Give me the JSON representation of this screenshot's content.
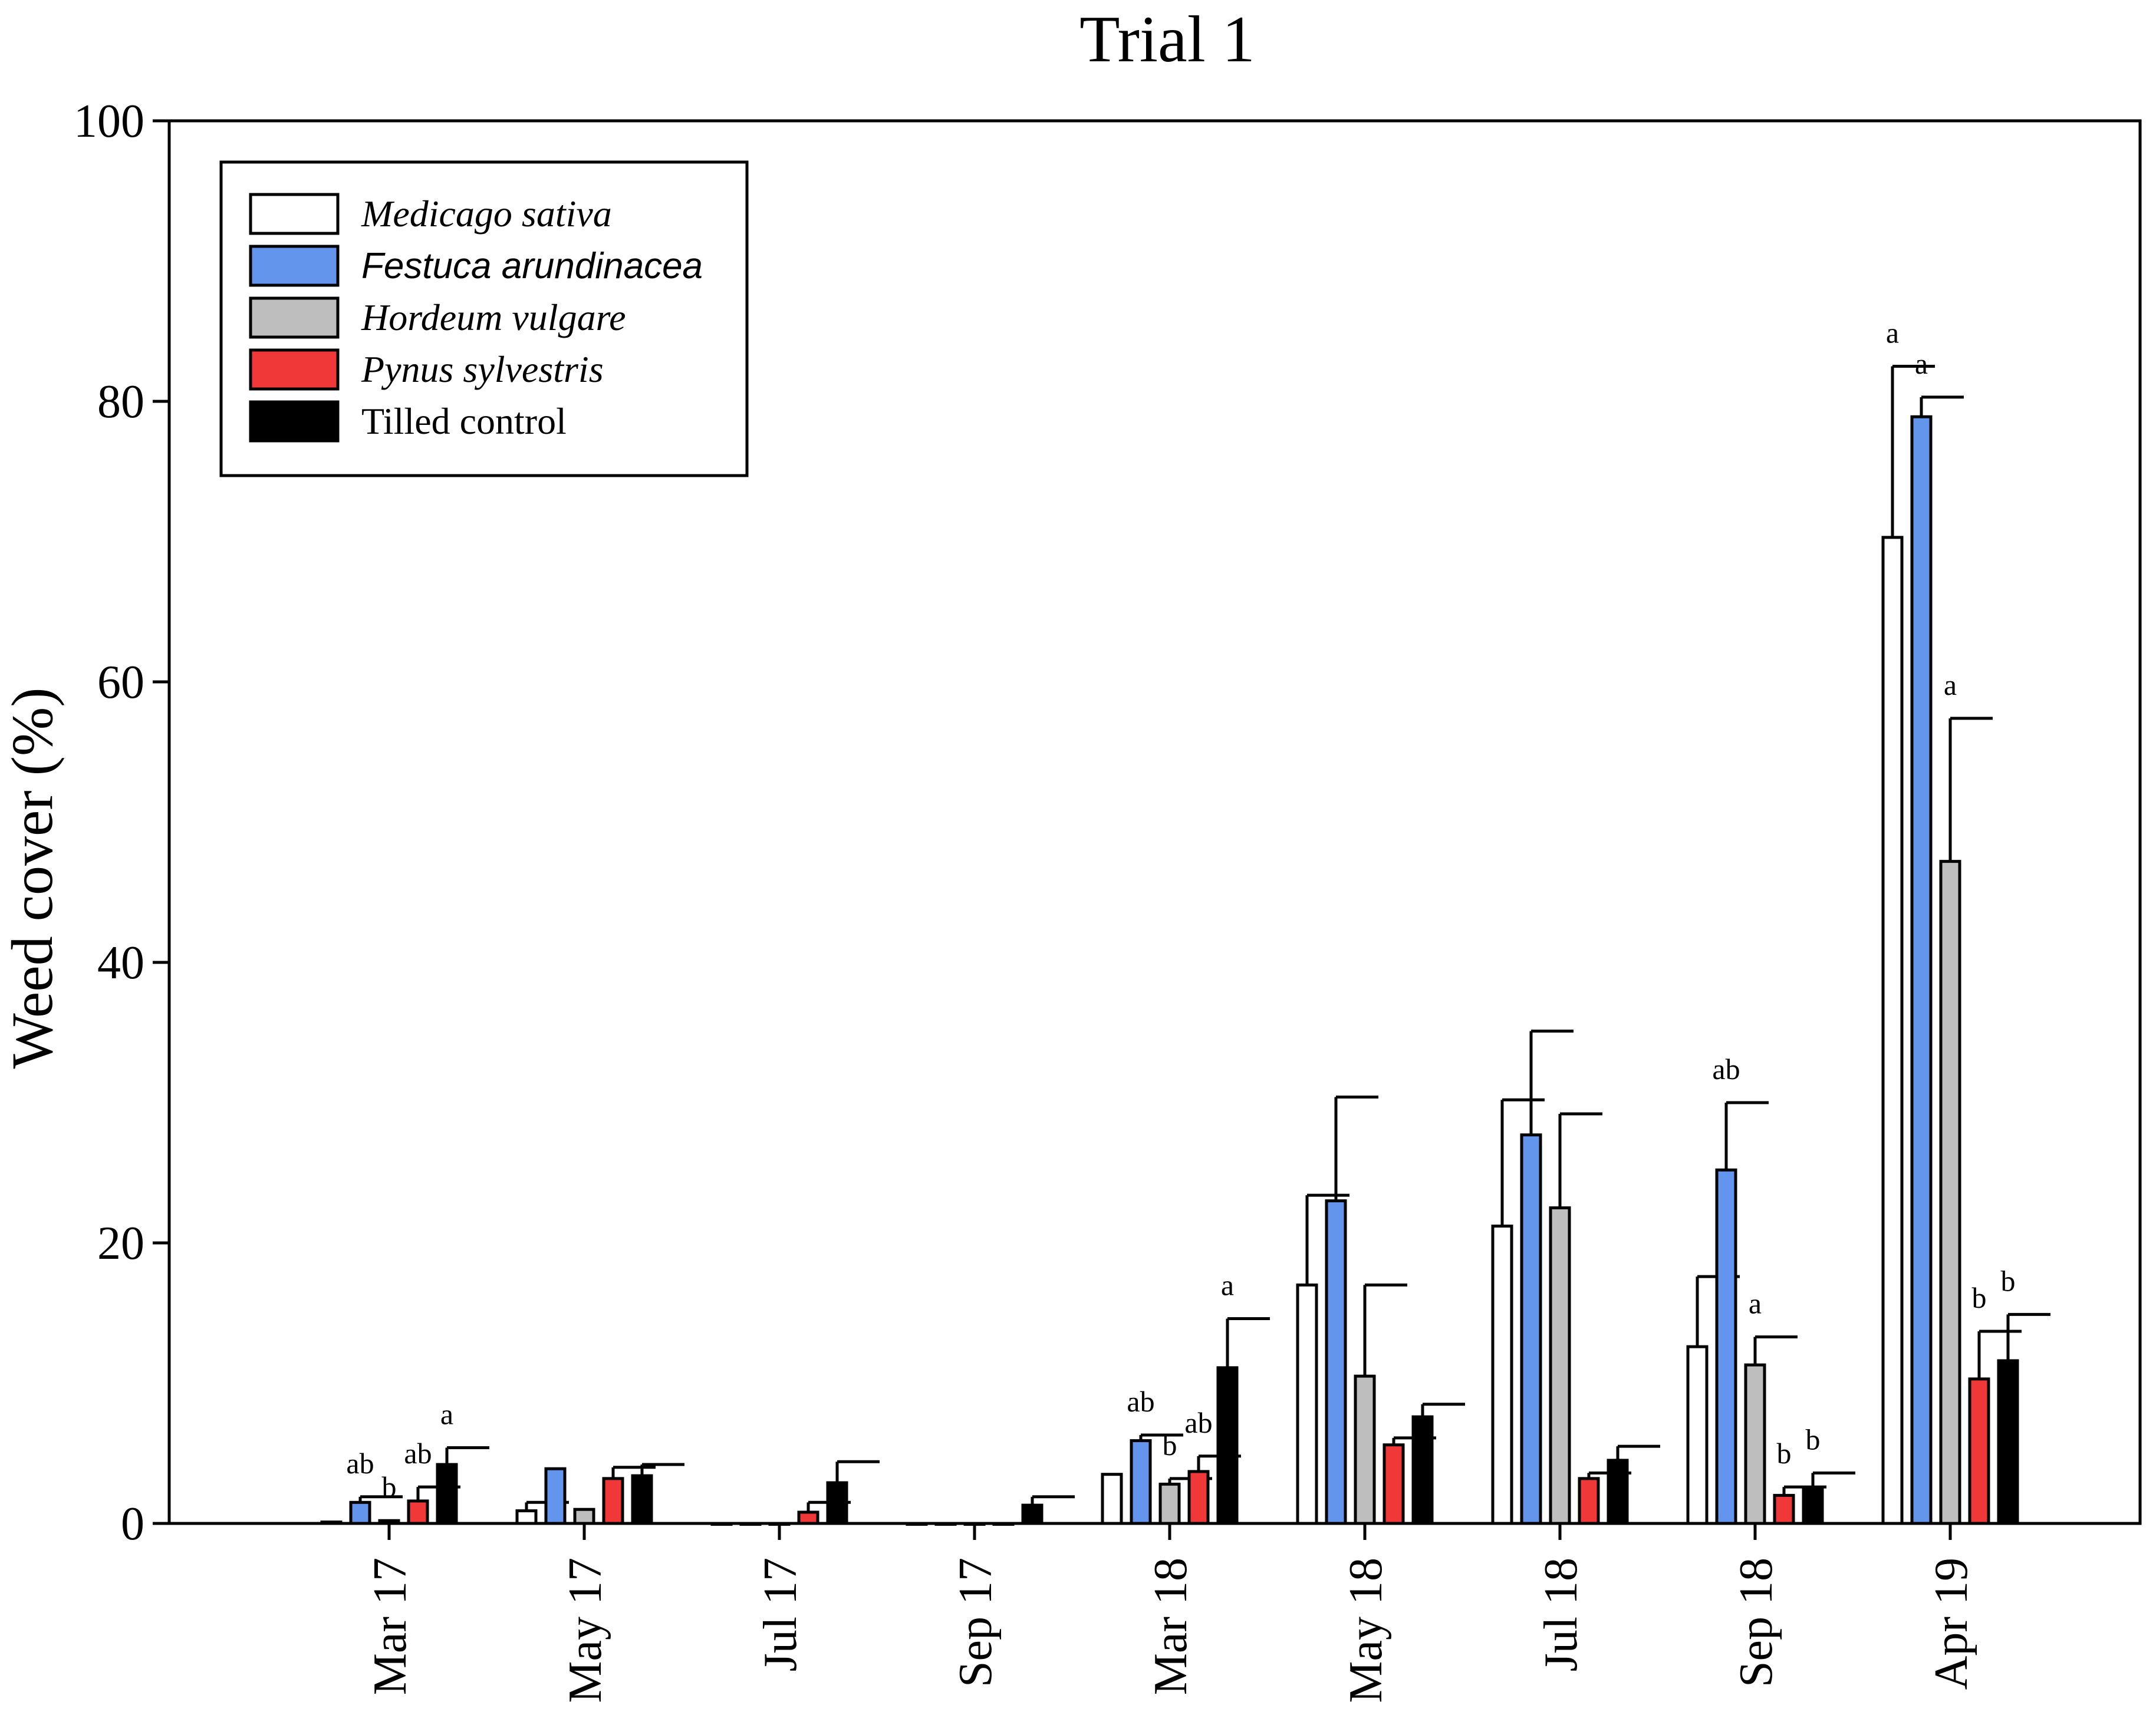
{
  "chart_data": {
    "type": "bar",
    "title": "Trial 1",
    "xlabel": "",
    "ylabel": "Weed cover (%)",
    "ylim": [
      0,
      100
    ],
    "yticks": [
      "0",
      "20",
      "40",
      "60",
      "80",
      "100"
    ],
    "grid": false,
    "legend_position": "top-left",
    "categories": [
      "Mar 17",
      "May 17",
      "Jul 17",
      "Sep 17",
      "Mar 18",
      "May 18",
      "Jul 18",
      "Sep 18",
      "Apr 19"
    ],
    "series": [
      {
        "name": "Medicago sativa",
        "italic": true,
        "font": "serif",
        "color": "#ffffff",
        "values": [
          0.1,
          0.9,
          0,
          0,
          3.5,
          17,
          21.2,
          12.6,
          70.3
        ],
        "errors": [
          0,
          0.6,
          0,
          0,
          0,
          6.4,
          9.0,
          5.0,
          12.2
        ],
        "letters": [
          "",
          "",
          "",
          "",
          "",
          "",
          "",
          "",
          "a"
        ]
      },
      {
        "name": "Festuca arundinacea",
        "italic": true,
        "font": "sans",
        "color": "#6495ed",
        "values": [
          1.5,
          3.9,
          0,
          0,
          5.9,
          23.0,
          27.7,
          25.2,
          78.9
        ],
        "errors": [
          0.4,
          0,
          0,
          0,
          0.4,
          7.4,
          7.4,
          4.8,
          1.4
        ],
        "letters": [
          "ab",
          "",
          "",
          "",
          "ab",
          "",
          "",
          "ab",
          "a"
        ]
      },
      {
        "name": "Hordeum vulgare",
        "italic": true,
        "font": "serif",
        "color": "#bebebe",
        "values": [
          0.2,
          1.0,
          0,
          0,
          2.8,
          10.5,
          22.5,
          11.3,
          47.2
        ],
        "errors": [
          0,
          0,
          0,
          0,
          0.4,
          6.5,
          6.7,
          2.0,
          10.2
        ],
        "letters": [
          "b",
          "",
          "",
          "",
          "b",
          "",
          "",
          "a",
          "a"
        ]
      },
      {
        "name": "Pynus sylvestris",
        "italic": true,
        "font": "serif",
        "color": "#f03838",
        "values": [
          1.6,
          3.2,
          0.8,
          0,
          3.7,
          5.6,
          3.2,
          2.0,
          10.3
        ],
        "errors": [
          1.0,
          0.8,
          0.7,
          0,
          1.1,
          0.5,
          0.4,
          0.6,
          3.4
        ],
        "letters": [
          "ab",
          "",
          "",
          "",
          "ab",
          "",
          "",
          "b",
          "b"
        ]
      },
      {
        "name": "Tilled control",
        "italic": false,
        "font": "serif",
        "color": "#000000",
        "values": [
          4.2,
          3.4,
          2.9,
          1.3,
          11.1,
          7.6,
          4.5,
          2.5,
          11.6
        ],
        "errors": [
          1.2,
          0.8,
          1.5,
          0.6,
          3.5,
          0.9,
          1.0,
          1.1,
          3.3
        ],
        "letters": [
          "a",
          "",
          "",
          "",
          "a",
          "",
          "",
          "b",
          "b"
        ]
      }
    ]
  }
}
